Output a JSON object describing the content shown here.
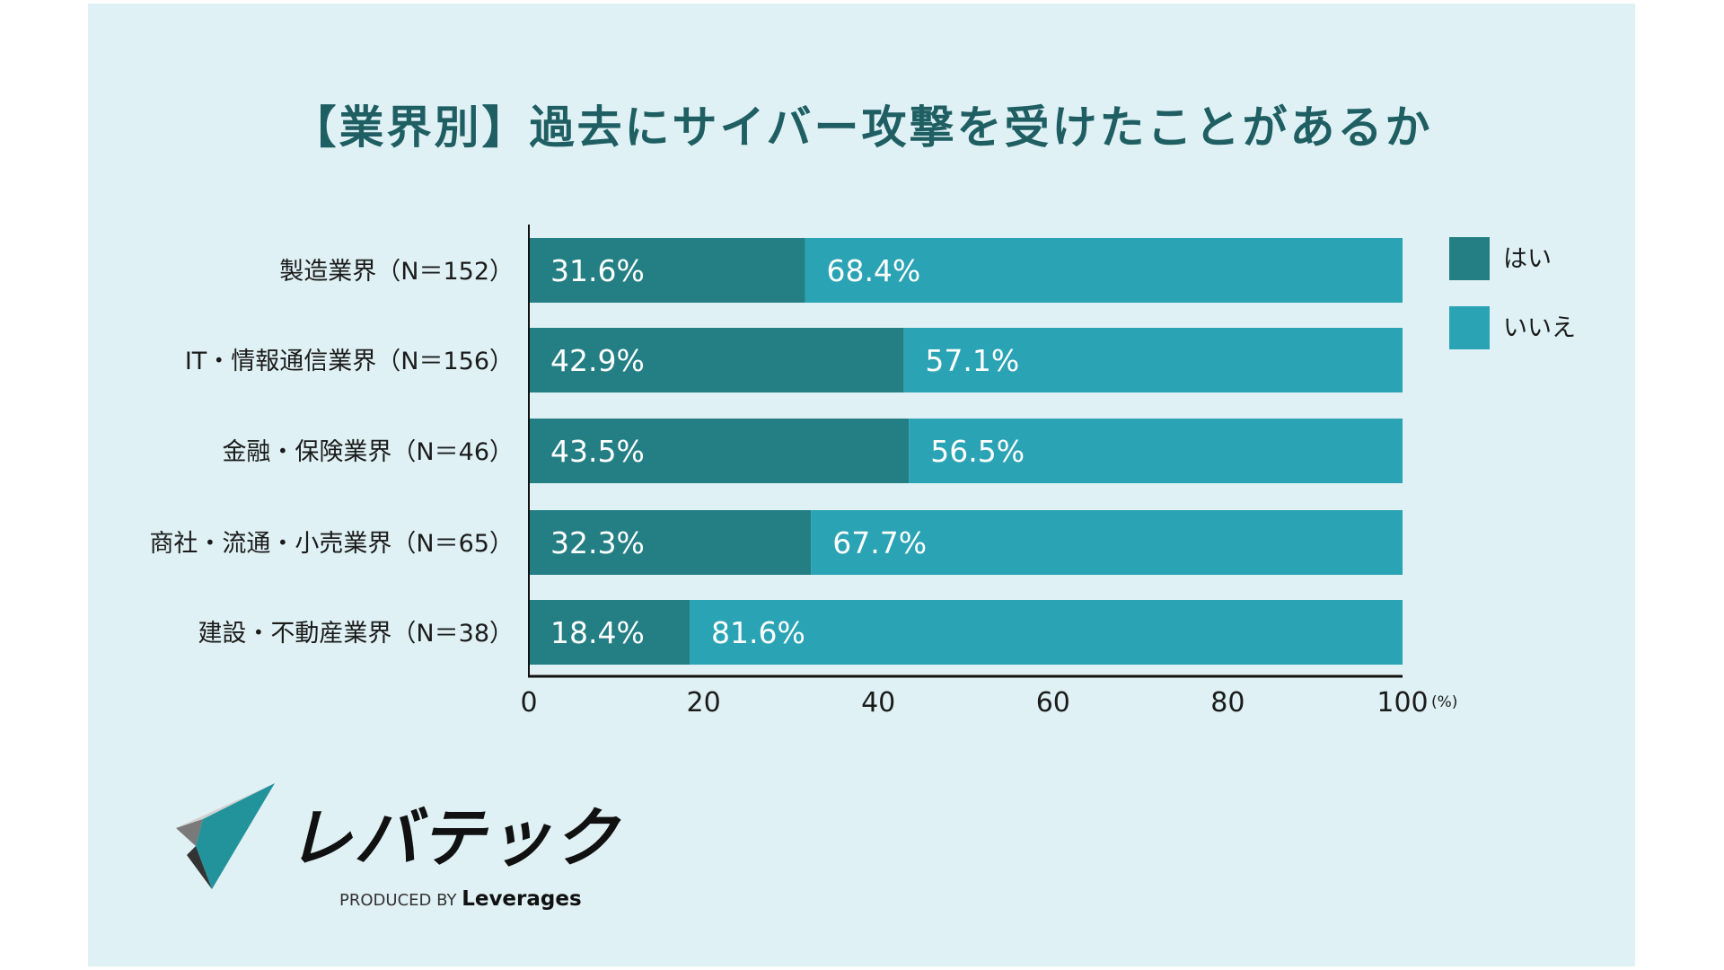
{
  "chart_data": {
    "type": "bar",
    "orientation": "horizontal",
    "stacked": true,
    "title": "【業界別】過去にサイバー攻撃を受けたことがあるか",
    "categories": [
      "製造業界（N＝152）",
      "IT・情報通信業界（N＝156）",
      "金融・保険業界（N＝46）",
      "商社・流通・小売業界（N＝65）",
      "建設・不動産業界（N＝38）"
    ],
    "series": [
      {
        "name": "はい",
        "values": [
          31.6,
          42.9,
          43.5,
          32.3,
          18.4
        ],
        "color": "#237f84"
      },
      {
        "name": "いいえ",
        "values": [
          68.4,
          57.1,
          56.5,
          67.7,
          81.6
        ],
        "color": "#2aa3b4"
      }
    ],
    "value_suffix": "%",
    "xlim": [
      0,
      100
    ],
    "xticks": [
      "0",
      "20",
      "40",
      "60",
      "80",
      "100"
    ],
    "xunit": "(%)",
    "grid": false,
    "legend": "right"
  },
  "logo": {
    "name": "レバテック",
    "tagline_prefix": "PRODUCED BY",
    "tagline_brand": "Leverages"
  }
}
